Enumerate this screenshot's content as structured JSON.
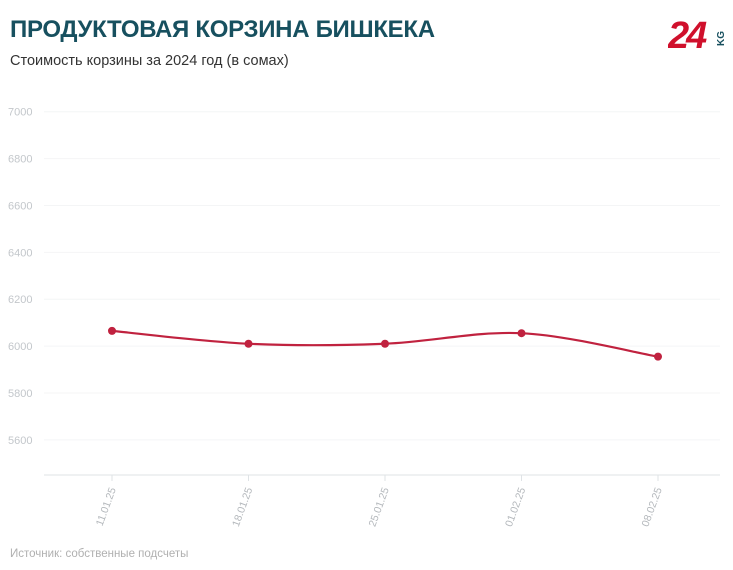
{
  "header": {
    "title": "ПРОДУКТОВАЯ КОРЗИНА БИШКЕКА",
    "subtitle": "Стоимость корзины за 2024 год (в сомах)"
  },
  "logo": {
    "number": "24",
    "suffix": "KG",
    "color": "#d0102c"
  },
  "footer": {
    "source": "Источник: собственные подсчеты"
  },
  "chart_data": {
    "type": "line",
    "x": [
      "11.01.25",
      "18.01.25",
      "25.01.25",
      "01.02.25",
      "08.02.25"
    ],
    "series": [
      {
        "values": [
          6065,
          6010,
          6010,
          6055,
          5955
        ],
        "color": "#c0223f"
      }
    ],
    "y_ticks": [
      5600,
      5800,
      6000,
      6200,
      6400,
      6600,
      6800,
      7000
    ],
    "ylim": [
      5450,
      7050
    ],
    "grid": true,
    "smooth": true
  }
}
